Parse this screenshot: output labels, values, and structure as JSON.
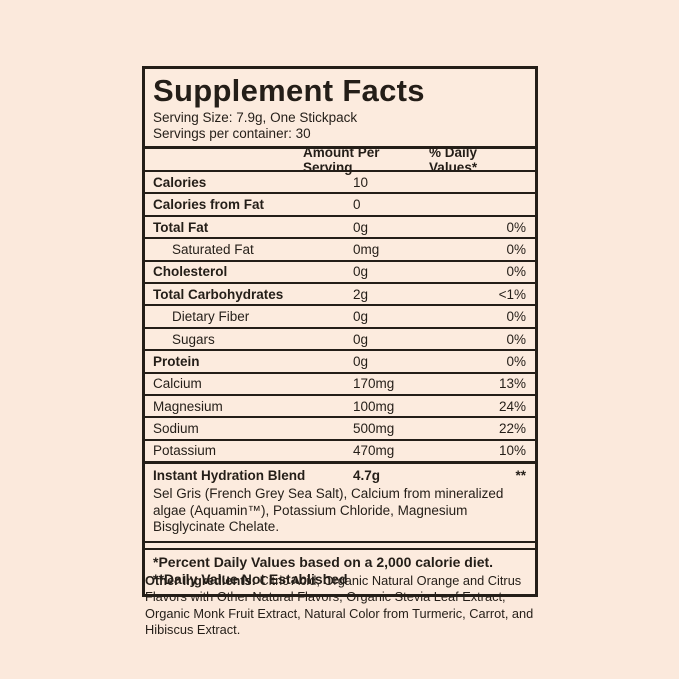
{
  "page": {
    "background_color": "#fbe9dc",
    "text_color": "#241e18",
    "border_color": "#241e18"
  },
  "panel": {
    "title": "Supplement Facts",
    "serving_size": "Serving Size: 7.9g, One Stickpack",
    "servings_per_container": "Servings per container: 30",
    "columns": {
      "amount_header": "Amount Per Serving",
      "dv_header": "% Daily Values*"
    },
    "rows": [
      {
        "name": "Calories",
        "amount": "10",
        "dv": "",
        "bold": true,
        "indent": false
      },
      {
        "name": "Calories from Fat",
        "amount": "0",
        "dv": "",
        "bold": true,
        "indent": false
      },
      {
        "name": "Total Fat",
        "amount": "0g",
        "dv": "0%",
        "bold": true,
        "indent": false
      },
      {
        "name": "Saturated Fat",
        "amount": "0mg",
        "dv": "0%",
        "bold": false,
        "indent": true
      },
      {
        "name": "Cholesterol",
        "amount": "0g",
        "dv": "0%",
        "bold": true,
        "indent": false
      },
      {
        "name": "Total Carbohydrates",
        "amount": "2g",
        "dv": "<1%",
        "bold": true,
        "indent": false
      },
      {
        "name": "Dietary Fiber",
        "amount": "0g",
        "dv": "0%",
        "bold": false,
        "indent": true
      },
      {
        "name": "Sugars",
        "amount": "0g",
        "dv": "0%",
        "bold": false,
        "indent": true
      },
      {
        "name": "Protein",
        "amount": "0g",
        "dv": "0%",
        "bold": true,
        "indent": false
      },
      {
        "name": "Calcium",
        "amount": "170mg",
        "dv": "13%",
        "bold": false,
        "indent": false
      },
      {
        "name": "Magnesium",
        "amount": "100mg",
        "dv": "24%",
        "bold": false,
        "indent": false
      },
      {
        "name": "Sodium",
        "amount": "500mg",
        "dv": "22%",
        "bold": false,
        "indent": false
      },
      {
        "name": "Potassium",
        "amount": "470mg",
        "dv": "10%",
        "bold": false,
        "indent": false
      }
    ],
    "blend": {
      "name": "Instant Hydration Blend",
      "amount": "4.7g",
      "dv": "**",
      "description": "Sel Gris (French Grey Sea Salt), Calcium from mineralized algae (Aquamin™), Potassium Chloride, Magnesium Bisglycinate Chelate."
    },
    "footnotes": [
      "*Percent Daily Values based on a 2,000 calorie diet.",
      "**Daily Value Not Established"
    ]
  },
  "other_ingredients": {
    "label": "Other Ingredients:",
    "text": " Citric Acid, Organic Natural Orange and Citrus Flavors with Other Natural Flavors, Organic Stevia Leaf Extract, Organic Monk Fruit Extract, Natural Color from Turmeric, Carrot, and Hibiscus Extract."
  }
}
